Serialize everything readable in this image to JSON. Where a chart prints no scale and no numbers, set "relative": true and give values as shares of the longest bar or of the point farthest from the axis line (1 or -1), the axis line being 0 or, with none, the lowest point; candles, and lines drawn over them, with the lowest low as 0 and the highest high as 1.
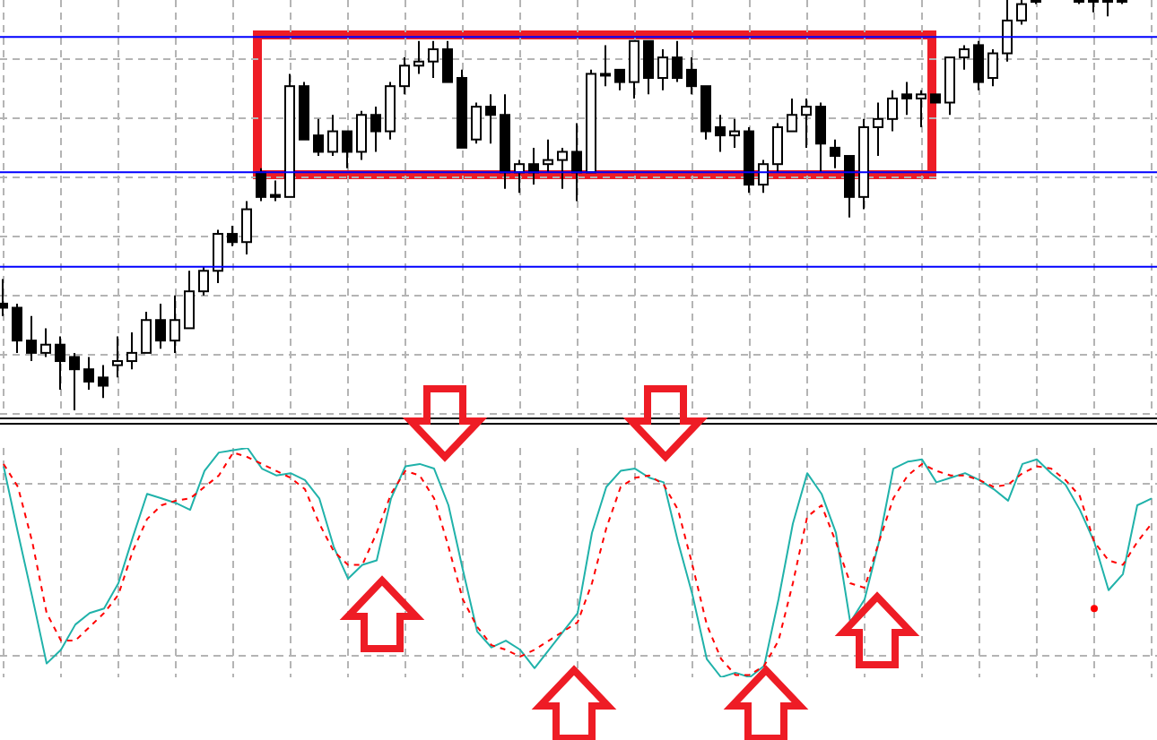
{
  "chart_data": [
    {
      "type": "candlestick",
      "relative": true,
      "grid": true,
      "categories": [
        null,
        null,
        null,
        null,
        null,
        null,
        null,
        null,
        null,
        null,
        null,
        null,
        null,
        null,
        null,
        null,
        null,
        null,
        null,
        null,
        null,
        null,
        null,
        null,
        null,
        null,
        null,
        null,
        null,
        null,
        null,
        null,
        null,
        null,
        null,
        null,
        null,
        null,
        null,
        null,
        null,
        null,
        null,
        null,
        null,
        null,
        null,
        null,
        null,
        null,
        null,
        null,
        null,
        null,
        null,
        null,
        null,
        null,
        null,
        null,
        null,
        null,
        null,
        null,
        null,
        null,
        null,
        null,
        null,
        null,
        null,
        null,
        null,
        null,
        null,
        null,
        null,
        null,
        null,
        null,
        null
      ],
      "ohlc": [
        [
          0.26,
          0.32,
          0.23,
          0.25
        ],
        [
          0.25,
          0.26,
          0.14,
          0.17
        ],
        [
          0.17,
          0.23,
          0.12,
          0.14
        ],
        [
          0.14,
          0.2,
          0.13,
          0.16
        ],
        [
          0.16,
          0.18,
          0.05,
          0.12
        ],
        [
          0.13,
          0.14,
          0,
          0.1
        ],
        [
          0.1,
          0.13,
          0.05,
          0.07
        ],
        [
          0.08,
          0.11,
          0.03,
          0.06
        ],
        [
          0.11,
          0.18,
          0.08,
          0.12
        ],
        [
          0.12,
          0.19,
          0.1,
          0.14
        ],
        [
          0.14,
          0.24,
          0.14,
          0.22
        ],
        [
          0.22,
          0.26,
          0.15,
          0.17
        ],
        [
          0.17,
          0.28,
          0.14,
          0.22
        ],
        [
          0.2,
          0.34,
          0.2,
          0.29
        ],
        [
          0.29,
          0.35,
          0.28,
          0.34
        ],
        [
          0.34,
          0.44,
          0.31,
          0.43
        ],
        [
          0.43,
          0.45,
          0.4,
          0.41
        ],
        [
          0.41,
          0.51,
          0.38,
          0.49
        ],
        [
          0.58,
          0.59,
          0.51,
          0.52
        ],
        [
          0.525,
          0.56,
          0.51,
          0.52
        ],
        [
          0.52,
          0.82,
          0.52,
          0.79
        ],
        [
          0.79,
          0.8,
          0.66,
          0.66
        ],
        [
          0.67,
          0.71,
          0.62,
          0.63
        ],
        [
          0.63,
          0.72,
          0.62,
          0.68
        ],
        [
          0.68,
          0.68,
          0.59,
          0.63
        ],
        [
          0.63,
          0.73,
          0.61,
          0.72
        ],
        [
          0.72,
          0.74,
          0.63,
          0.68
        ],
        [
          0.68,
          0.8,
          0.66,
          0.79
        ],
        [
          0.79,
          0.86,
          0.77,
          0.84
        ],
        [
          0.84,
          0.9,
          0.82,
          0.85
        ],
        [
          0.85,
          0.9,
          0.81,
          0.88
        ],
        [
          0.88,
          0.9,
          0.8,
          0.8
        ],
        [
          0.81,
          0.83,
          0.64,
          0.64
        ],
        [
          0.66,
          0.75,
          0.65,
          0.74
        ],
        [
          0.74,
          0.77,
          0.65,
          0.72
        ],
        [
          0.72,
          0.77,
          0.54,
          0.58
        ],
        [
          0.58,
          0.61,
          0.53,
          0.6
        ],
        [
          0.6,
          0.64,
          0.55,
          0.58
        ],
        [
          0.6,
          0.66,
          0.58,
          0.61
        ],
        [
          0.61,
          0.64,
          0.54,
          0.63
        ],
        [
          0.63,
          0.7,
          0.51,
          0.58
        ],
        [
          0.58,
          0.83,
          0.58,
          0.82
        ],
        [
          0.82,
          0.89,
          0.79,
          0.82
        ],
        [
          0.83,
          0.83,
          0.78,
          0.8
        ],
        [
          0.8,
          0.9,
          0.76,
          0.9
        ],
        [
          0.9,
          0.9,
          0.77,
          0.81
        ],
        [
          0.81,
          0.88,
          0.78,
          0.86
        ],
        [
          0.86,
          0.9,
          0.8,
          0.81
        ],
        [
          0.83,
          0.86,
          0.77,
          0.79
        ],
        [
          0.79,
          0.79,
          0.66,
          0.68
        ],
        [
          0.69,
          0.72,
          0.63,
          0.67
        ],
        [
          0.67,
          0.71,
          0.64,
          0.68
        ],
        [
          0.68,
          0.69,
          0.53,
          0.55
        ],
        [
          0.55,
          0.61,
          0.53,
          0.6
        ],
        [
          0.6,
          0.7,
          0.58,
          0.69
        ],
        [
          0.68,
          0.76,
          0.68,
          0.72
        ],
        [
          0.72,
          0.76,
          0.64,
          0.74
        ],
        [
          0.74,
          0.75,
          0.58,
          0.65
        ],
        [
          0.64,
          0.66,
          0.59,
          0.62
        ],
        [
          0.62,
          0.62,
          0.47,
          0.52
        ],
        [
          0.52,
          0.71,
          0.49,
          0.69
        ],
        [
          0.69,
          0.75,
          0.62,
          0.71
        ],
        [
          0.71,
          0.78,
          0.68,
          0.76
        ],
        [
          0.77,
          0.8,
          0.72,
          0.76
        ],
        [
          0.76,
          0.78,
          0.69,
          0.77
        ],
        [
          0.77,
          0.77,
          0.75,
          0.75
        ],
        [
          0.75,
          0.86,
          0.72,
          0.86
        ],
        [
          0.86,
          0.89,
          0.83,
          0.88
        ],
        [
          0.89,
          0.9,
          0.78,
          0.8
        ],
        [
          0.81,
          0.88,
          0.79,
          0.87
        ],
        [
          0.87,
          1,
          0.85,
          0.95
        ],
        [
          0.95,
          1,
          0.94,
          0.99
        ],
        [
          1,
          1,
          0.99,
          1
        ],
        null,
        null,
        [
          1,
          1,
          0.99,
          1
        ],
        [
          1,
          1,
          0.97,
          1
        ],
        [
          1,
          1,
          0.96,
          1
        ],
        [
          1,
          1,
          0.99,
          1
        ],
        null,
        null
      ],
      "ref_lines": [
        {
          "axis": "y",
          "value": 0.91,
          "color": "#0000ff"
        },
        {
          "axis": "y",
          "value": 0.58,
          "color": "#0000ff"
        },
        {
          "axis": "y",
          "value": 0.35,
          "color": "#0000ff"
        }
      ]
    },
    {
      "type": "line",
      "relative": true,
      "grid": true,
      "categories": [
        null,
        null,
        null,
        null,
        null,
        null,
        null,
        null,
        null,
        null,
        null,
        null,
        null,
        null,
        null,
        null,
        null,
        null,
        null,
        null,
        null,
        null,
        null,
        null,
        null,
        null,
        null,
        null,
        null,
        null,
        null,
        null,
        null,
        null,
        null,
        null,
        null,
        null,
        null,
        null,
        null,
        null,
        null,
        null,
        null,
        null,
        null,
        null,
        null,
        null,
        null,
        null,
        null,
        null,
        null,
        null,
        null,
        null,
        null,
        null,
        null,
        null,
        null,
        null,
        null,
        null,
        null,
        null,
        null,
        null,
        null,
        null,
        null,
        null,
        null,
        null,
        null,
        null,
        null,
        null,
        null
      ],
      "series": [
        {
          "color": "#20b2aa",
          "line_style": "solid",
          "values": [
            0.92,
            0.63,
            0.35,
            0.06,
            0.12,
            0.23,
            0.28,
            0.3,
            0.41,
            0.61,
            0.8,
            0.78,
            0.76,
            0.73,
            0.9,
            0.98,
            0.99,
            1,
            0.91,
            0.88,
            0.89,
            0.86,
            0.78,
            0.57,
            0.43,
            0.49,
            0.51,
            0.78,
            0.92,
            0.93,
            0.91,
            0.75,
            0.47,
            0.2,
            0.13,
            0.16,
            0.12,
            0.04,
            0.12,
            0.2,
            0.28,
            0.63,
            0.83,
            0.9,
            0.91,
            0.87,
            0.85,
            0.59,
            0.36,
            0.08,
            0,
            0.02,
            0,
            0.05,
            0.34,
            0.67,
            0.89,
            0.8,
            0.63,
            0.24,
            0.34,
            0.59,
            0.91,
            0.94,
            0.95,
            0.85,
            0.87,
            0.89,
            0.86,
            0.82,
            0.77,
            0.93,
            0.95,
            0.89,
            0.84,
            0.73,
            0.59,
            0.38,
            0.45,
            0.75,
            0.78
          ]
        },
        {
          "color": "#ff0000",
          "line_style": "dashed",
          "values": [
            0.93,
            0.83,
            0.59,
            0.28,
            0.16,
            0.16,
            0.22,
            0.28,
            0.36,
            0.55,
            0.69,
            0.75,
            0.77,
            0.78,
            0.83,
            0.88,
            0.98,
            0.96,
            0.93,
            0.9,
            0.87,
            0.82,
            0.67,
            0.55,
            0.49,
            0.49,
            0.63,
            0.8,
            0.9,
            0.88,
            0.78,
            0.57,
            0.34,
            0.22,
            0.14,
            0.12,
            0.09,
            0.12,
            0.16,
            0.2,
            0.24,
            0.41,
            0.65,
            0.83,
            0.87,
            0.88,
            0.84,
            0.73,
            0.49,
            0.23,
            0.08,
            0.01,
            0.01,
            0.05,
            0.16,
            0.41,
            0.7,
            0.75,
            0.59,
            0.41,
            0.39,
            0.59,
            0.78,
            0.88,
            0.93,
            0.9,
            0.88,
            0.88,
            0.86,
            0.83,
            0.84,
            0.89,
            0.92,
            0.91,
            0.86,
            0.79,
            0.59,
            0.51,
            0.49,
            0.59,
            0.67
          ]
        },
        {
          "type": "scatter",
          "color": "#ff0000",
          "values": [
            null,
            null,
            null,
            null,
            null,
            null,
            null,
            null,
            null,
            null,
            null,
            null,
            null,
            null,
            null,
            null,
            null,
            null,
            null,
            null,
            null,
            null,
            null,
            null,
            null,
            null,
            null,
            null,
            null,
            null,
            null,
            null,
            null,
            null,
            null,
            null,
            null,
            null,
            null,
            null,
            null,
            null,
            null,
            null,
            null,
            null,
            null,
            null,
            null,
            null,
            null,
            null,
            null,
            null,
            null,
            null,
            null,
            null,
            null,
            null,
            null,
            null,
            null,
            null,
            null,
            null,
            null,
            null,
            null,
            null,
            null,
            null,
            null,
            null,
            null,
            null,
            0.3,
            null,
            null,
            null,
            null
          ]
        }
      ]
    }
  ]
}
